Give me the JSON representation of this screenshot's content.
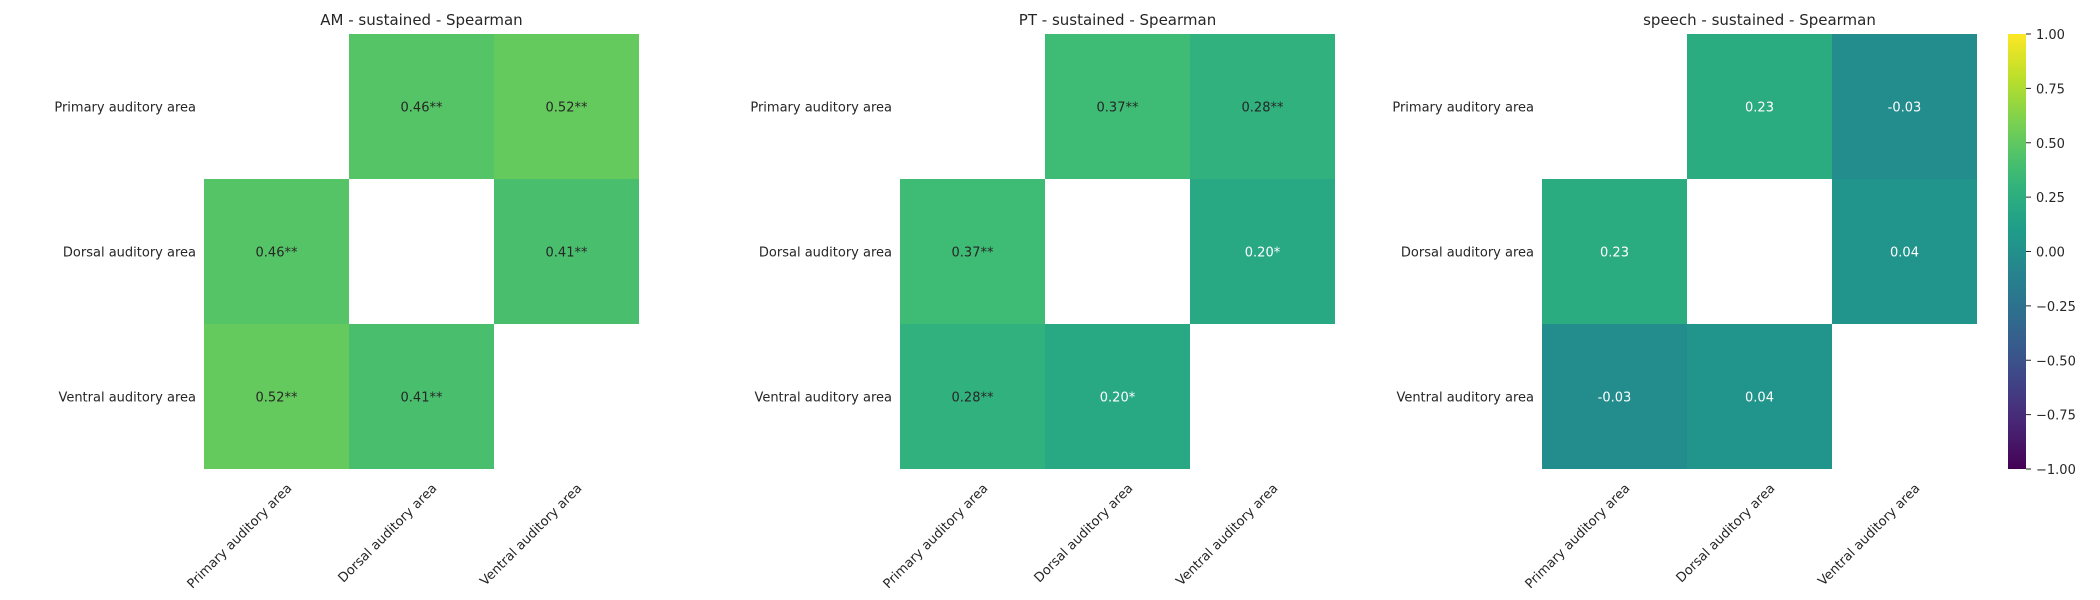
{
  "chart_data": [
    {
      "type": "heatmap",
      "title": "AM - sustained - Spearman",
      "rows": [
        "Primary auditory area",
        "Dorsal auditory area",
        "Ventral auditory area"
      ],
      "cols": [
        "Primary auditory area",
        "Dorsal auditory area",
        "Ventral auditory area"
      ],
      "values": [
        [
          null,
          0.46,
          0.52
        ],
        [
          0.46,
          null,
          0.41
        ],
        [
          0.52,
          0.41,
          null
        ]
      ],
      "labels": [
        [
          "",
          "0.46**",
          "0.52**"
        ],
        [
          "0.46**",
          "",
          "0.41**"
        ],
        [
          "0.52**",
          "0.41**",
          ""
        ]
      ]
    },
    {
      "type": "heatmap",
      "title": "PT - sustained - Spearman",
      "rows": [
        "Primary auditory area",
        "Dorsal auditory area",
        "Ventral auditory area"
      ],
      "cols": [
        "Primary auditory area",
        "Dorsal auditory area",
        "Ventral auditory area"
      ],
      "values": [
        [
          null,
          0.37,
          0.28
        ],
        [
          0.37,
          null,
          0.2
        ],
        [
          0.28,
          0.2,
          null
        ]
      ],
      "labels": [
        [
          "",
          "0.37**",
          "0.28**"
        ],
        [
          "0.37**",
          "",
          "0.20*"
        ],
        [
          "0.28**",
          "0.20*",
          ""
        ]
      ]
    },
    {
      "type": "heatmap",
      "title": "speech - sustained - Spearman",
      "rows": [
        "Primary auditory area",
        "Dorsal auditory area",
        "Ventral auditory area"
      ],
      "cols": [
        "Primary auditory area",
        "Dorsal auditory area",
        "Ventral auditory area"
      ],
      "values": [
        [
          null,
          0.23,
          -0.03
        ],
        [
          0.23,
          null,
          0.04
        ],
        [
          -0.03,
          0.04,
          null
        ]
      ],
      "labels": [
        [
          "",
          "0.23",
          "-0.03"
        ],
        [
          "0.23",
          "",
          "0.04"
        ],
        [
          "-0.03",
          "0.04",
          ""
        ]
      ]
    }
  ],
  "colorbar": {
    "colormap": "viridis",
    "range": [
      -1.0,
      1.0
    ],
    "ticks": [
      "1.00",
      "0.75",
      "0.50",
      "0.25",
      "0.00",
      "−0.25",
      "−0.50",
      "−0.75",
      "−1.00"
    ]
  }
}
